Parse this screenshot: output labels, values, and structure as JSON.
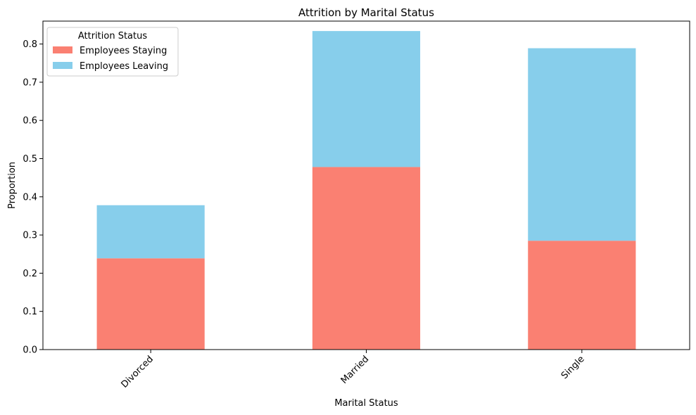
{
  "chart_data": {
    "type": "bar",
    "stacked": true,
    "title": "Attrition by Marital Status",
    "xlabel": "Marital Status",
    "ylabel": "Proportion",
    "categories": [
      "Divorced",
      "Married",
      "Single"
    ],
    "series": [
      {
        "name": "Employees Staying",
        "color": "#fa8072",
        "values": [
          0.239,
          0.478,
          0.285
        ]
      },
      {
        "name": "Employees Leaving",
        "color": "#87ceeb",
        "values": [
          0.139,
          0.356,
          0.504
        ]
      }
    ],
    "ylim": [
      0,
      0.86
    ],
    "yticks": [
      "0.0",
      "0.1",
      "0.2",
      "0.3",
      "0.4",
      "0.5",
      "0.6",
      "0.7",
      "0.8"
    ],
    "legend": {
      "title": "Attrition Status",
      "position": "top-left"
    },
    "grid": false
  }
}
